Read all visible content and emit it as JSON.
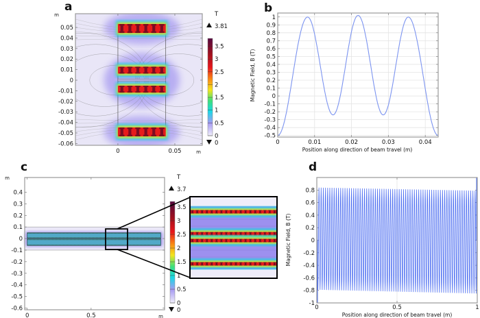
{
  "figure": {
    "panel_labels": [
      "a",
      "b",
      "c",
      "d"
    ]
  },
  "chart_data": [
    {
      "panel": "a",
      "type": "heatmap",
      "title": "",
      "axis_unit": "m",
      "xlim": [
        -0.0373,
        0.0741
      ],
      "ylim": [
        -0.0617,
        0.063
      ],
      "x_ticks": [
        {
          "label": "0",
          "value": 0
        },
        {
          "label": "0.05",
          "value": 0.05
        }
      ],
      "y_ticks": [
        {
          "label": "0.05",
          "value": 0.05
        },
        {
          "label": "0.04",
          "value": 0.04
        },
        {
          "label": "0.03",
          "value": 0.03
        },
        {
          "label": "0.02",
          "value": 0.02
        },
        {
          "label": "0.01",
          "value": 0.01
        },
        {
          "label": "0",
          "value": 0
        },
        {
          "label": "-0.01",
          "value": -0.01
        },
        {
          "label": "-0.02",
          "value": -0.02
        },
        {
          "label": "-0.03",
          "value": -0.03
        },
        {
          "label": "-0.04",
          "value": -0.04
        },
        {
          "label": "-0.05",
          "value": -0.05
        },
        {
          "label": "-0.06",
          "value": -0.06
        }
      ],
      "colorbar": {
        "unit": "T",
        "max_label": "3.81",
        "min_label": "0",
        "max": 3.81,
        "min": 0,
        "ticks": [
          {
            "label": "3.5",
            "value": 3.5
          },
          {
            "label": "3",
            "value": 3
          },
          {
            "label": "2.5",
            "value": 2.5
          },
          {
            "label": "2",
            "value": 2
          },
          {
            "label": "1.5",
            "value": 1.5
          },
          {
            "label": "1",
            "value": 1
          },
          {
            "label": "0.5",
            "value": 0.5
          },
          {
            "label": "0",
            "value": 0
          }
        ]
      }
    },
    {
      "panel": "b",
      "type": "line",
      "title": "",
      "xlabel": "Position along direction of beam travel (m)",
      "ylabel": "Magnetic Field, B (T)",
      "xlim": [
        0,
        0.0435
      ],
      "ylim": [
        -0.52,
        1.05
      ],
      "grid": true,
      "color": "#7b93f0",
      "x_ticks": [
        {
          "label": "0",
          "value": 0
        },
        {
          "label": "0.01",
          "value": 0.01
        },
        {
          "label": "0.02",
          "value": 0.02
        },
        {
          "label": "0.03",
          "value": 0.03
        },
        {
          "label": "0.04",
          "value": 0.04
        }
      ],
      "y_ticks": [
        {
          "label": "1",
          "value": 1
        },
        {
          "label": "0.9",
          "value": 0.9
        },
        {
          "label": "0.8",
          "value": 0.8
        },
        {
          "label": "0.7",
          "value": 0.7
        },
        {
          "label": "0.6",
          "value": 0.6
        },
        {
          "label": "0.5",
          "value": 0.5
        },
        {
          "label": "0.4",
          "value": 0.4
        },
        {
          "label": "0.3",
          "value": 0.3
        },
        {
          "label": "0.2",
          "value": 0.2
        },
        {
          "label": "0.1",
          "value": 0.1
        },
        {
          "label": "0",
          "value": 0
        },
        {
          "label": "-0.1",
          "value": -0.1
        },
        {
          "label": "-0.2",
          "value": -0.2
        },
        {
          "label": "-0.3",
          "value": -0.3
        },
        {
          "label": "-0.4",
          "value": -0.4
        },
        {
          "label": "-0.5",
          "value": -0.5
        }
      ],
      "extrema": [
        {
          "x": 0,
          "y": -0.5
        },
        {
          "x": 0.0081,
          "y": 1.0
        },
        {
          "x": 0.015,
          "y": -0.24
        },
        {
          "x": 0.0218,
          "y": 1.02
        },
        {
          "x": 0.0286,
          "y": -0.24
        },
        {
          "x": 0.0354,
          "y": 1.0
        },
        {
          "x": 0.0435,
          "y": -0.5
        }
      ]
    },
    {
      "panel": "c",
      "type": "heatmap",
      "title": "",
      "axis_unit": "m",
      "xlim": [
        -0.02,
        1.075
      ],
      "ylim": [
        -0.615,
        0.527
      ],
      "x_ticks": [
        {
          "label": "0",
          "value": 0
        },
        {
          "label": "0.5",
          "value": 0.5
        }
      ],
      "y_ticks": [
        {
          "label": "0.4",
          "value": 0.4
        },
        {
          "label": "0.3",
          "value": 0.3
        },
        {
          "label": "0.2",
          "value": 0.2
        },
        {
          "label": "0.1",
          "value": 0.1
        },
        {
          "label": "0",
          "value": 0
        },
        {
          "label": "-0.1",
          "value": -0.1
        },
        {
          "label": "-0.2",
          "value": -0.2
        },
        {
          "label": "-0.3",
          "value": -0.3
        },
        {
          "label": "-0.4",
          "value": -0.4
        },
        {
          "label": "-0.5",
          "value": -0.5
        },
        {
          "label": "-0.6",
          "value": -0.6
        }
      ],
      "colorbar": {
        "unit": "T",
        "max_label": "3.7",
        "min_label": "0",
        "max": 3.7,
        "min": 0,
        "ticks": [
          {
            "label": "3.5",
            "value": 3.5
          },
          {
            "label": "3",
            "value": 3
          },
          {
            "label": "2.5",
            "value": 2.5
          },
          {
            "label": "2",
            "value": 2
          },
          {
            "label": "1.5",
            "value": 1.5
          },
          {
            "label": "1",
            "value": 1
          },
          {
            "label": "0.5",
            "value": 0.5
          },
          {
            "label": "0",
            "value": 0
          }
        ]
      }
    },
    {
      "panel": "d",
      "type": "line",
      "title": "",
      "xlabel": "Position along direction of beam travel (m)",
      "ylabel": "Magnetic Field, B (T)",
      "xlim": [
        0,
        1
      ],
      "ylim": [
        -1,
        1
      ],
      "grid": false,
      "color": "#3f63ef",
      "x_ticks": [
        {
          "label": "0",
          "value": 0
        },
        {
          "label": "0.5",
          "value": 0.5
        },
        {
          "label": "1",
          "value": 1
        }
      ],
      "y_ticks": [
        {
          "label": "0.8",
          "value": 0.8
        },
        {
          "label": "0.6",
          "value": 0.6
        },
        {
          "label": "0.4",
          "value": 0.4
        },
        {
          "label": "0.2",
          "value": 0.2
        },
        {
          "label": "0",
          "value": 0
        },
        {
          "label": "-0.2",
          "value": -0.2
        },
        {
          "label": "-0.4",
          "value": -0.4
        },
        {
          "label": "-0.6",
          "value": -0.6
        },
        {
          "label": "-0.8",
          "value": -0.8
        },
        {
          "label": "-1",
          "value": -1
        }
      ],
      "oscillation": {
        "periods": 74,
        "max_start": 0.84,
        "max_end": 0.79,
        "min_start": -0.79,
        "min_end": -0.85
      }
    }
  ]
}
